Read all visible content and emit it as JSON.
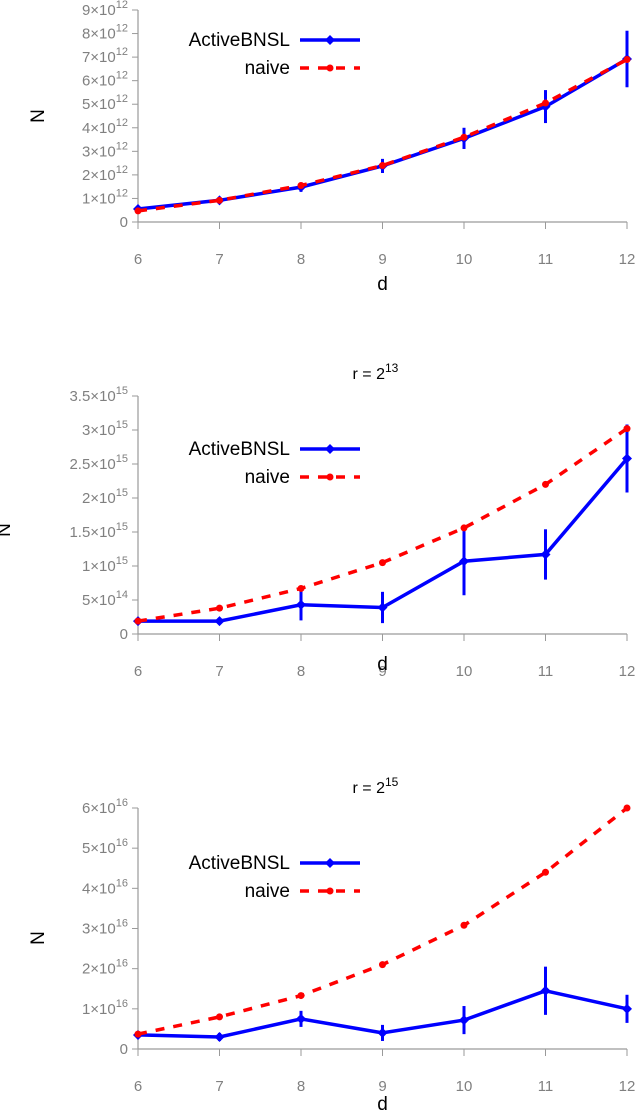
{
  "chart_data": [
    {
      "type": "line",
      "title_base": "",
      "title_exp": "",
      "xlabel": "d",
      "ylabel": "N",
      "x": [
        6,
        7,
        8,
        9,
        10,
        11,
        12
      ],
      "xlim": [
        6,
        12
      ],
      "ylim": [
        0,
        9000000000000
      ],
      "yticks": [
        {
          "value": 0,
          "mant": "0",
          "exp": ""
        },
        {
          "value": 1000000000000,
          "mant": "1×10",
          "exp": "12"
        },
        {
          "value": 2000000000000,
          "mant": "2×10",
          "exp": "12"
        },
        {
          "value": 3000000000000,
          "mant": "3×10",
          "exp": "12"
        },
        {
          "value": 4000000000000,
          "mant": "4×10",
          "exp": "12"
        },
        {
          "value": 5000000000000,
          "mant": "5×10",
          "exp": "12"
        },
        {
          "value": 6000000000000,
          "mant": "6×10",
          "exp": "12"
        },
        {
          "value": 7000000000000,
          "mant": "7×10",
          "exp": "12"
        },
        {
          "value": 8000000000000,
          "mant": "8×10",
          "exp": "12"
        },
        {
          "value": 9000000000000,
          "mant": "9×10",
          "exp": "12"
        }
      ],
      "legend_position": "top-left",
      "grid": false,
      "series": [
        {
          "name": "ActiveBNSL",
          "color": "#0000ff",
          "style": "solid",
          "marker": "diamond",
          "values": [
            550000000000,
            920000000000,
            1480000000000,
            2380000000000,
            3550000000000,
            4900000000000,
            6920000000000
          ],
          "errors": [
            0,
            0,
            200000000000,
            300000000000,
            450000000000,
            700000000000,
            1200000000000
          ]
        },
        {
          "name": "naive",
          "color": "#ff0000",
          "style": "dashed",
          "marker": "circle",
          "values": [
            470000000000,
            920000000000,
            1550000000000,
            2400000000000,
            3600000000000,
            5050000000000,
            6900000000000
          ],
          "errors": []
        }
      ]
    },
    {
      "type": "line",
      "title_base": "r = 2",
      "title_exp": "13",
      "xlabel": "d",
      "ylabel": "N",
      "x": [
        6,
        7,
        8,
        9,
        10,
        11,
        12
      ],
      "xlim": [
        6,
        12
      ],
      "ylim": [
        0,
        3500000000000000
      ],
      "yticks": [
        {
          "value": 0,
          "mant": "0",
          "exp": ""
        },
        {
          "value": 500000000000000,
          "mant": "5×10",
          "exp": "14"
        },
        {
          "value": 1000000000000000,
          "mant": "1×10",
          "exp": "15"
        },
        {
          "value": 1500000000000000,
          "mant": "1.5×10",
          "exp": "15"
        },
        {
          "value": 2000000000000000,
          "mant": "2×10",
          "exp": "15"
        },
        {
          "value": 2500000000000000,
          "mant": "2.5×10",
          "exp": "15"
        },
        {
          "value": 3000000000000000,
          "mant": "3×10",
          "exp": "15"
        },
        {
          "value": 3500000000000000,
          "mant": "3.5×10",
          "exp": "15"
        }
      ],
      "legend_position": "top-left",
      "grid": false,
      "series": [
        {
          "name": "ActiveBNSL",
          "color": "#0000ff",
          "style": "solid",
          "marker": "diamond",
          "values": [
            190000000000000,
            190000000000000,
            430000000000000,
            390000000000000,
            1070000000000000,
            1170000000000000,
            2580000000000000
          ],
          "errors": [
            0,
            0,
            230000000000000,
            230000000000000,
            500000000000000,
            370000000000000,
            500000000000000
          ]
        },
        {
          "name": "naive",
          "color": "#ff0000",
          "style": "dashed",
          "marker": "circle",
          "values": [
            190000000000000,
            380000000000000,
            670000000000000,
            1050000000000000,
            1560000000000000,
            2200000000000000,
            3020000000000000
          ],
          "errors": []
        }
      ]
    },
    {
      "type": "line",
      "title_base": "r = 2",
      "title_exp": "15",
      "xlabel": "d",
      "ylabel": "N",
      "x": [
        6,
        7,
        8,
        9,
        10,
        11,
        12
      ],
      "xlim": [
        6,
        12
      ],
      "ylim": [
        0,
        60000000000000000
      ],
      "yticks": [
        {
          "value": 0,
          "mant": "0",
          "exp": ""
        },
        {
          "value": 10000000000000000,
          "mant": "1×10",
          "exp": "16"
        },
        {
          "value": 20000000000000000,
          "mant": "2×10",
          "exp": "16"
        },
        {
          "value": 30000000000000000,
          "mant": "3×10",
          "exp": "16"
        },
        {
          "value": 40000000000000000,
          "mant": "4×10",
          "exp": "16"
        },
        {
          "value": 50000000000000000,
          "mant": "5×10",
          "exp": "16"
        },
        {
          "value": 60000000000000000,
          "mant": "6×10",
          "exp": "16"
        }
      ],
      "legend_position": "top-left",
      "grid": false,
      "series": [
        {
          "name": "ActiveBNSL",
          "color": "#0000ff",
          "style": "solid",
          "marker": "diamond",
          "values": [
            3500000000000000,
            3000000000000000,
            7500000000000000,
            4000000000000000,
            7200000000000000,
            14500000000000000,
            10000000000000000
          ],
          "errors": [
            0,
            1000000000000000,
            2000000000000000,
            2000000000000000,
            3500000000000000,
            6000000000000000,
            3500000000000000
          ]
        },
        {
          "name": "naive",
          "color": "#ff0000",
          "style": "dashed",
          "marker": "circle",
          "values": [
            3700000000000000,
            8000000000000000,
            13300000000000000,
            21000000000000000,
            30800000000000000,
            44000000000000000,
            60000000000000000
          ],
          "errors": []
        }
      ]
    }
  ]
}
